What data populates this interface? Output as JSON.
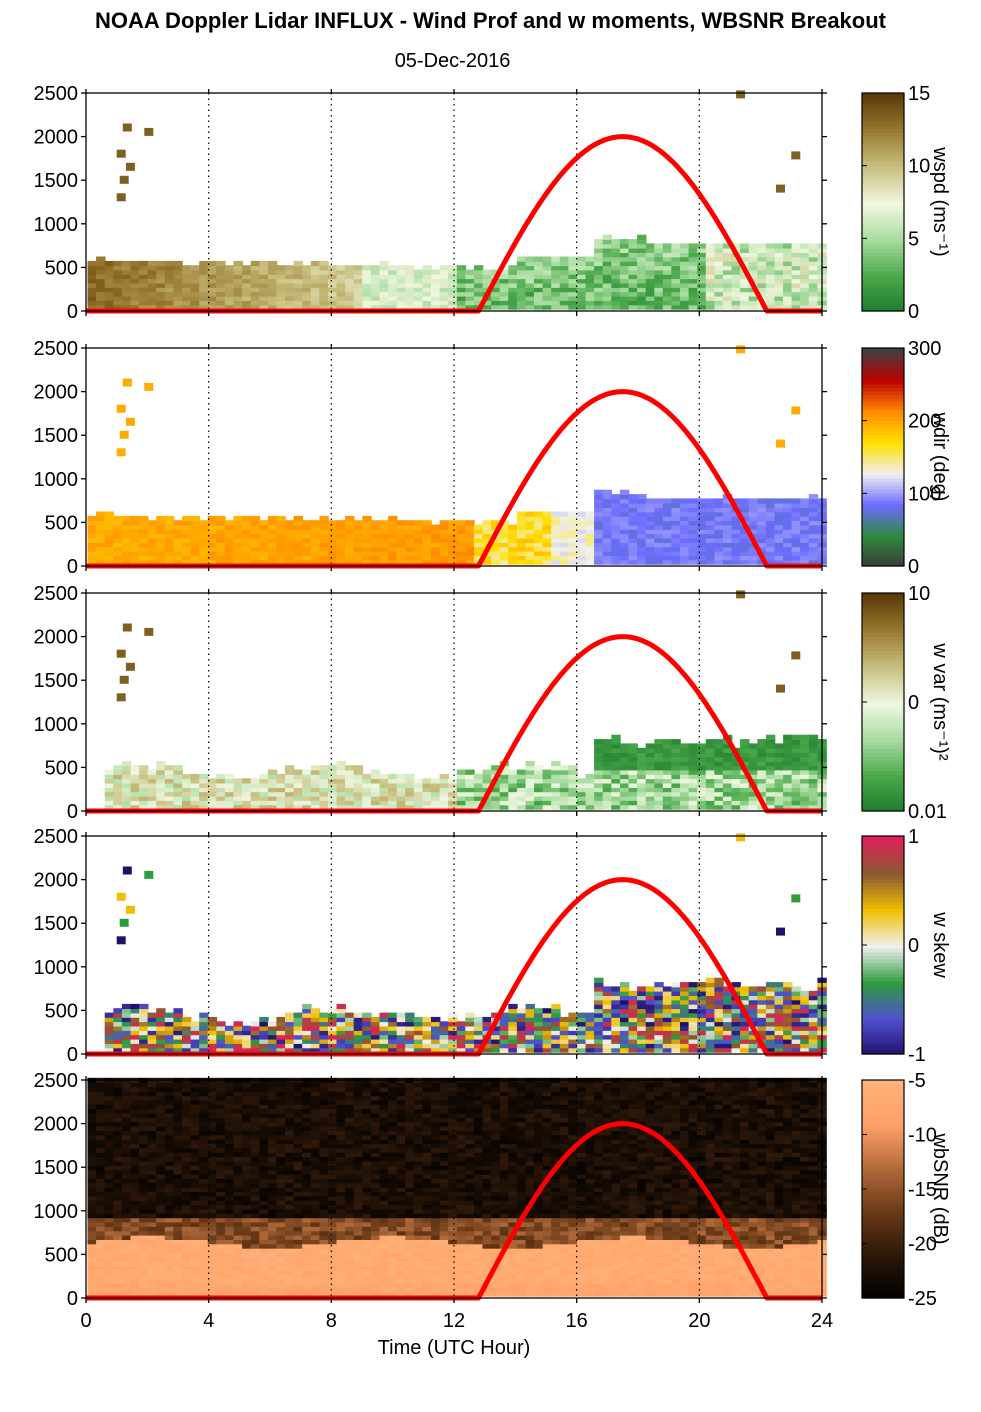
{
  "figure": {
    "title": "NOAA Doppler Lidar INFLUX - Wind Prof and w moments, WBSNR Breakout",
    "subtitle": "05-Dec-2016",
    "xlabel": "Time (UTC Hour)",
    "xticks": [
      "0",
      "4",
      "8",
      "12",
      "16",
      "20",
      "24"
    ],
    "yticks": [
      "0",
      "500",
      "1000",
      "1500",
      "2000",
      "2500"
    ]
  },
  "colors": {
    "sun_curve": "#ff0000",
    "grid": "#000000"
  },
  "chart_data": [
    {
      "type": "heatmap",
      "panel": "wind-speed",
      "colorbar_label": "wspd (ms⁻¹)",
      "colorbar_ticks": [
        "15",
        "10",
        "5",
        "0"
      ],
      "xlim": [
        0,
        24
      ],
      "ylim": [
        0,
        2500
      ],
      "colormap": [
        "#1e7a2e",
        "#4aa84a",
        "#a8dca0",
        "#f0f7e0",
        "#c8c080",
        "#9a7a30",
        "#5a3a08"
      ],
      "sun_curve": {
        "start_hour": 12.8,
        "peak_hour": 17.5,
        "end_hour": 22.2,
        "peak_height": 2000
      }
    },
    {
      "type": "heatmap",
      "panel": "wind-direction",
      "colorbar_label": "wdir (deg)",
      "colorbar_ticks": [
        "300",
        "200",
        "100",
        "0"
      ],
      "xlim": [
        0,
        24
      ],
      "ylim": [
        0,
        2500
      ],
      "colormap": [
        "#3a3a3a",
        "#2e8b3e",
        "#6b6bff",
        "#f0f0f0",
        "#ffe000",
        "#ff8c00",
        "#c00000",
        "#404040"
      ],
      "sun_curve": {
        "start_hour": 12.8,
        "peak_hour": 17.5,
        "end_hour": 22.2,
        "peak_height": 2000
      }
    },
    {
      "type": "heatmap",
      "panel": "w-variance",
      "colorbar_label": "w var (ms⁻¹)²",
      "colorbar_ticks": [
        "10",
        "0",
        "0.01"
      ],
      "xlim": [
        0,
        24
      ],
      "ylim": [
        0,
        2500
      ],
      "colormap": [
        "#1e7a2e",
        "#4aa84a",
        "#a8dca0",
        "#f0f7e0",
        "#c8c080",
        "#9a7a30",
        "#5a3a08"
      ],
      "sun_curve": {
        "start_hour": 12.8,
        "peak_hour": 17.5,
        "end_hour": 22.2,
        "peak_height": 2000
      }
    },
    {
      "type": "heatmap",
      "panel": "w-skewness",
      "colorbar_label": "w skew",
      "colorbar_ticks": [
        "1",
        "0",
        "-1"
      ],
      "xlim": [
        0,
        24
      ],
      "ylim": [
        0,
        2500
      ],
      "colormap": [
        "#20106a",
        "#5050d0",
        "#2e9b3e",
        "#f0f0f0",
        "#f0c000",
        "#8a5a30",
        "#e0205a"
      ],
      "sun_curve": {
        "start_hour": 12.8,
        "peak_hour": 17.5,
        "end_hour": 22.2,
        "peak_height": 2000
      }
    },
    {
      "type": "heatmap",
      "panel": "wbsnr",
      "colorbar_label": "wbSNR (dB)",
      "colorbar_ticks": [
        "-5",
        "-10",
        "-15",
        "-20",
        "-25"
      ],
      "xlim": [
        0,
        24
      ],
      "ylim": [
        0,
        2500
      ],
      "colormap": [
        "#000000",
        "#2a1608",
        "#6a3a18",
        "#b06a3a",
        "#ffa068",
        "#ffb27a"
      ],
      "sun_curve": {
        "start_hour": 12.8,
        "peak_hour": 17.5,
        "end_hour": 22.2,
        "peak_height": 2000
      }
    }
  ]
}
